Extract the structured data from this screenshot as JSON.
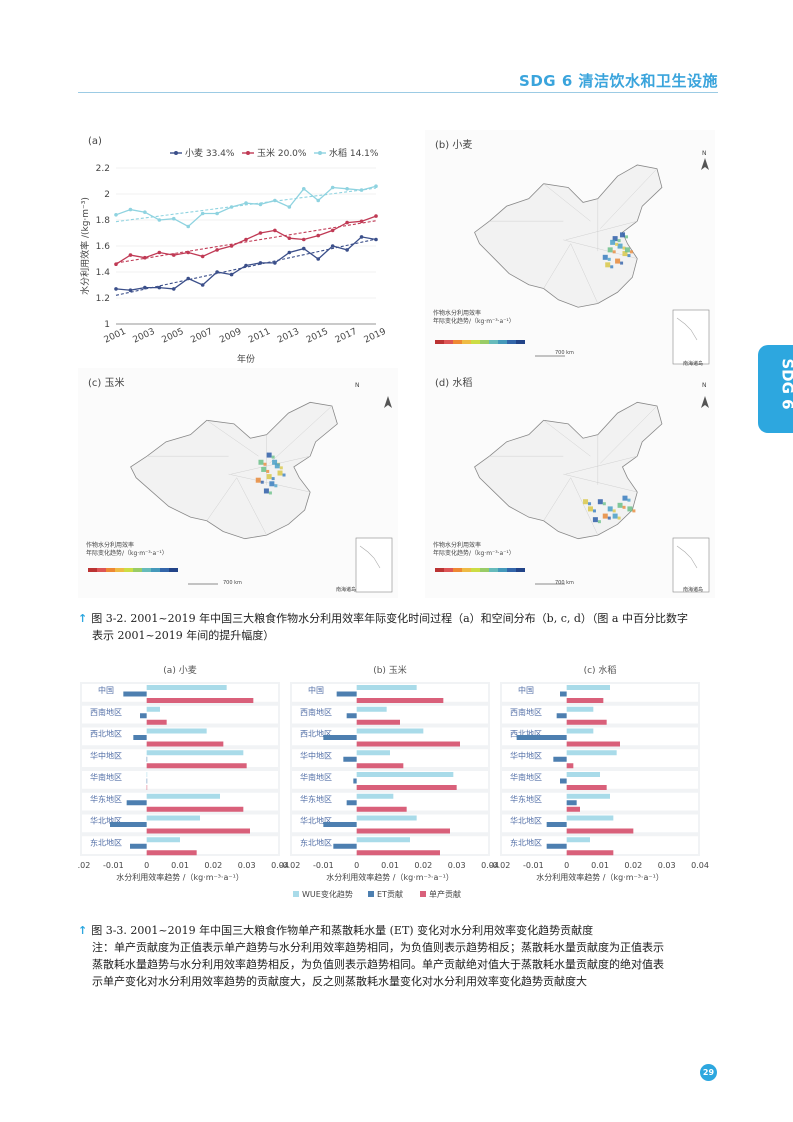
{
  "header": {
    "title": "SDG 6 清洁饮水和卫生设施"
  },
  "side_tab": {
    "label": "SDG 6"
  },
  "fig2": {
    "panel_a": {
      "label": "(a)",
      "legend": [
        {
          "name": "小麦 33.4%",
          "color": "#3b4f8a"
        },
        {
          "name": "玉米 20.0%",
          "color": "#c03a55"
        },
        {
          "name": "水稻 14.1%",
          "color": "#8fd3e0"
        }
      ],
      "ylabel": "水分利用效率 /(kg·m⁻³)",
      "xlabel": "年份",
      "yticks": [
        "1",
        "1.2",
        "1.4",
        "1.6",
        "1.8",
        "2",
        "2.2"
      ],
      "xticks": [
        "2001",
        "2003",
        "2005",
        "2007",
        "2009",
        "2011",
        "2013",
        "2015",
        "2017",
        "2019"
      ]
    },
    "panel_b": {
      "label": "(b) 小麦"
    },
    "panel_c": {
      "label": "(c) 玉米"
    },
    "panel_d": {
      "label": "(d) 水稻"
    },
    "map_legend_title_b": "作物水分利用效率",
    "map_legend_sub_b": "年际变化趋势/（kg·m⁻³·a⁻¹）",
    "map_legend_title": "作物水分利用效率",
    "map_legend_sub": "年际变化趋势/（kg·m⁻³·a⁻¹）",
    "scale_label": "700 km",
    "inset_label": "南海诸岛",
    "north": "N"
  },
  "caption1": {
    "line1": "图 3-2. 2001~2019 年中国三大粮食作物水分利用效率年际变化时间过程（a）和空间分布（b, c, d）（图 a 中百分比数字",
    "line2": "表示 2001~2019 年间的提升幅度）"
  },
  "fig3": {
    "titles": [
      "(a) 小麦",
      "(b) 玉米",
      "(c) 水稻"
    ],
    "regions": [
      "中国",
      "西南地区",
      "西北地区",
      "华中地区",
      "华南地区",
      "华东地区",
      "华北地区",
      "东北地区"
    ],
    "xticks": [
      "-0.02",
      "-0.01",
      "0",
      "0.01",
      "0.02",
      "0.03",
      "0.04"
    ],
    "xlabel_a": "水分利用效率趋势 /（kg·m⁻³·a⁻¹）",
    "xlabel_b": "水分利用效率趋势 /（kg·m⁻³·a⁻¹）",
    "xlabel_c": "水分利用效率趋势 /（kg·m⁻³·a⁻¹）",
    "legend": [
      {
        "name": "WUE变化趋势",
        "color": "#a9dbe9"
      },
      {
        "name": "ET贡献",
        "color": "#4d7fb0"
      },
      {
        "name": "单产贡献",
        "color": "#d9607a"
      }
    ]
  },
  "caption2": {
    "line1": "图 3-3. 2001~2019 年中国三大粮食作物单产和蒸散耗水量 (ET) 变化对水分利用效率变化趋势贡献度",
    "line2": "注：单产贡献度为正值表示单产趋势与水分利用效率趋势相同，为负值则表示趋势相反；蒸散耗水量贡献度为正值表示",
    "line3": "蒸散耗水量趋势与水分利用效率趋势相反，为负值则表示趋势相同。单产贡献绝对值大于蒸散耗水量贡献度的绝对值表",
    "line4": "示单产变化对水分利用效率趋势的贡献度大，反之则蒸散耗水量变化对水分利用效率变化趋势贡献度大"
  },
  "page_number": "29",
  "chart_data": [
    {
      "type": "line",
      "title": "(a)",
      "xlabel": "年份",
      "ylabel": "水分利用效率 /(kg·m⁻³)",
      "ylim": [
        1,
        2.2
      ],
      "x": [
        2001,
        2002,
        2003,
        2004,
        2005,
        2006,
        2007,
        2008,
        2009,
        2010,
        2011,
        2012,
        2013,
        2014,
        2015,
        2016,
        2017,
        2018,
        2019
      ],
      "series": [
        {
          "name": "小麦 33.4%",
          "values": [
            1.27,
            1.26,
            1.28,
            1.28,
            1.27,
            1.35,
            1.3,
            1.4,
            1.38,
            1.45,
            1.47,
            1.47,
            1.55,
            1.58,
            1.5,
            1.6,
            1.57,
            1.67,
            1.65
          ]
        },
        {
          "name": "玉米 20.0%",
          "values": [
            1.46,
            1.53,
            1.51,
            1.55,
            1.53,
            1.55,
            1.52,
            1.57,
            1.6,
            1.65,
            1.7,
            1.72,
            1.66,
            1.65,
            1.68,
            1.72,
            1.78,
            1.79,
            1.83
          ]
        },
        {
          "name": "水稻 14.1%",
          "values": [
            1.84,
            1.88,
            1.86,
            1.8,
            1.81,
            1.75,
            1.85,
            1.85,
            1.9,
            1.93,
            1.92,
            1.95,
            1.9,
            2.04,
            1.95,
            2.05,
            2.04,
            2.03,
            2.06
          ]
        }
      ]
    },
    {
      "type": "bar",
      "title": "(a) 小麦",
      "categories": [
        "中国",
        "西南地区",
        "西北地区",
        "华中地区",
        "华南地区",
        "华东地区",
        "华北地区",
        "东北地区"
      ],
      "xlim": [
        -0.02,
        0.04
      ],
      "series": [
        {
          "name": "WUE变化趋势",
          "values": [
            0.024,
            0.004,
            0.018,
            0.029,
            0.0,
            0.022,
            0.016,
            0.01
          ]
        },
        {
          "name": "ET贡献",
          "values": [
            -0.007,
            -0.002,
            -0.004,
            0.0,
            0.0,
            -0.006,
            -0.011,
            -0.005
          ]
        },
        {
          "name": "单产贡献",
          "values": [
            0.032,
            0.006,
            0.023,
            0.03,
            0.0,
            0.029,
            0.031,
            0.015
          ]
        }
      ]
    },
    {
      "type": "bar",
      "title": "(b) 玉米",
      "categories": [
        "中国",
        "西南地区",
        "西北地区",
        "华中地区",
        "华南地区",
        "华东地区",
        "华北地区",
        "东北地区"
      ],
      "xlim": [
        -0.02,
        0.04
      ],
      "series": [
        {
          "name": "WUE变化趋势",
          "values": [
            0.018,
            0.009,
            0.02,
            0.01,
            0.029,
            0.011,
            0.018,
            0.016
          ]
        },
        {
          "name": "ET贡献",
          "values": [
            -0.006,
            -0.003,
            -0.01,
            -0.004,
            -0.001,
            -0.003,
            -0.01,
            -0.007
          ]
        },
        {
          "name": "单产贡献",
          "values": [
            0.026,
            0.013,
            0.031,
            0.014,
            0.03,
            0.015,
            0.028,
            0.025
          ]
        }
      ]
    },
    {
      "type": "bar",
      "title": "(c) 水稻",
      "categories": [
        "中国",
        "西南地区",
        "西北地区",
        "华中地区",
        "华南地区",
        "华东地区",
        "华北地区",
        "东北地区"
      ],
      "xlim": [
        -0.02,
        0.04
      ],
      "series": [
        {
          "name": "WUE变化趋势",
          "values": [
            0.013,
            0.008,
            0.008,
            0.015,
            0.01,
            0.013,
            0.014,
            0.007
          ]
        },
        {
          "name": "ET贡献",
          "values": [
            -0.002,
            -0.003,
            -0.015,
            -0.004,
            -0.002,
            0.003,
            -0.006,
            -0.006
          ]
        },
        {
          "name": "单产贡献",
          "values": [
            0.011,
            0.012,
            0.016,
            0.002,
            0.012,
            0.004,
            0.02,
            0.014
          ]
        }
      ]
    }
  ]
}
